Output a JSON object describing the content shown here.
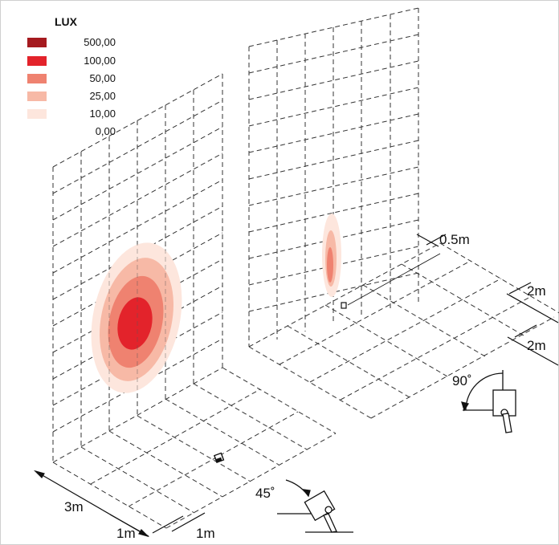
{
  "legend": {
    "title": "LUX",
    "items": [
      {
        "label": "500,00",
        "color": "#a51a1f"
      },
      {
        "label": "100,00",
        "color": "#e3232b"
      },
      {
        "label": "50,00",
        "color": "#ef8270"
      },
      {
        "label": "25,00",
        "color": "#f7b9a6"
      },
      {
        "label": "10,00",
        "color": "#fde6dd"
      },
      {
        "label": "0,00",
        "color": "#ffffff"
      }
    ]
  },
  "dimensions": {
    "floor_depth": "3m",
    "floor_grid_x": "1m",
    "floor_grid_y": "1m",
    "right_offset": "0.5m",
    "right_grid_a": "2m",
    "right_grid_b": "2m"
  },
  "angles": {
    "left_fixture": "45˚",
    "right_fixture": "90˚"
  }
}
